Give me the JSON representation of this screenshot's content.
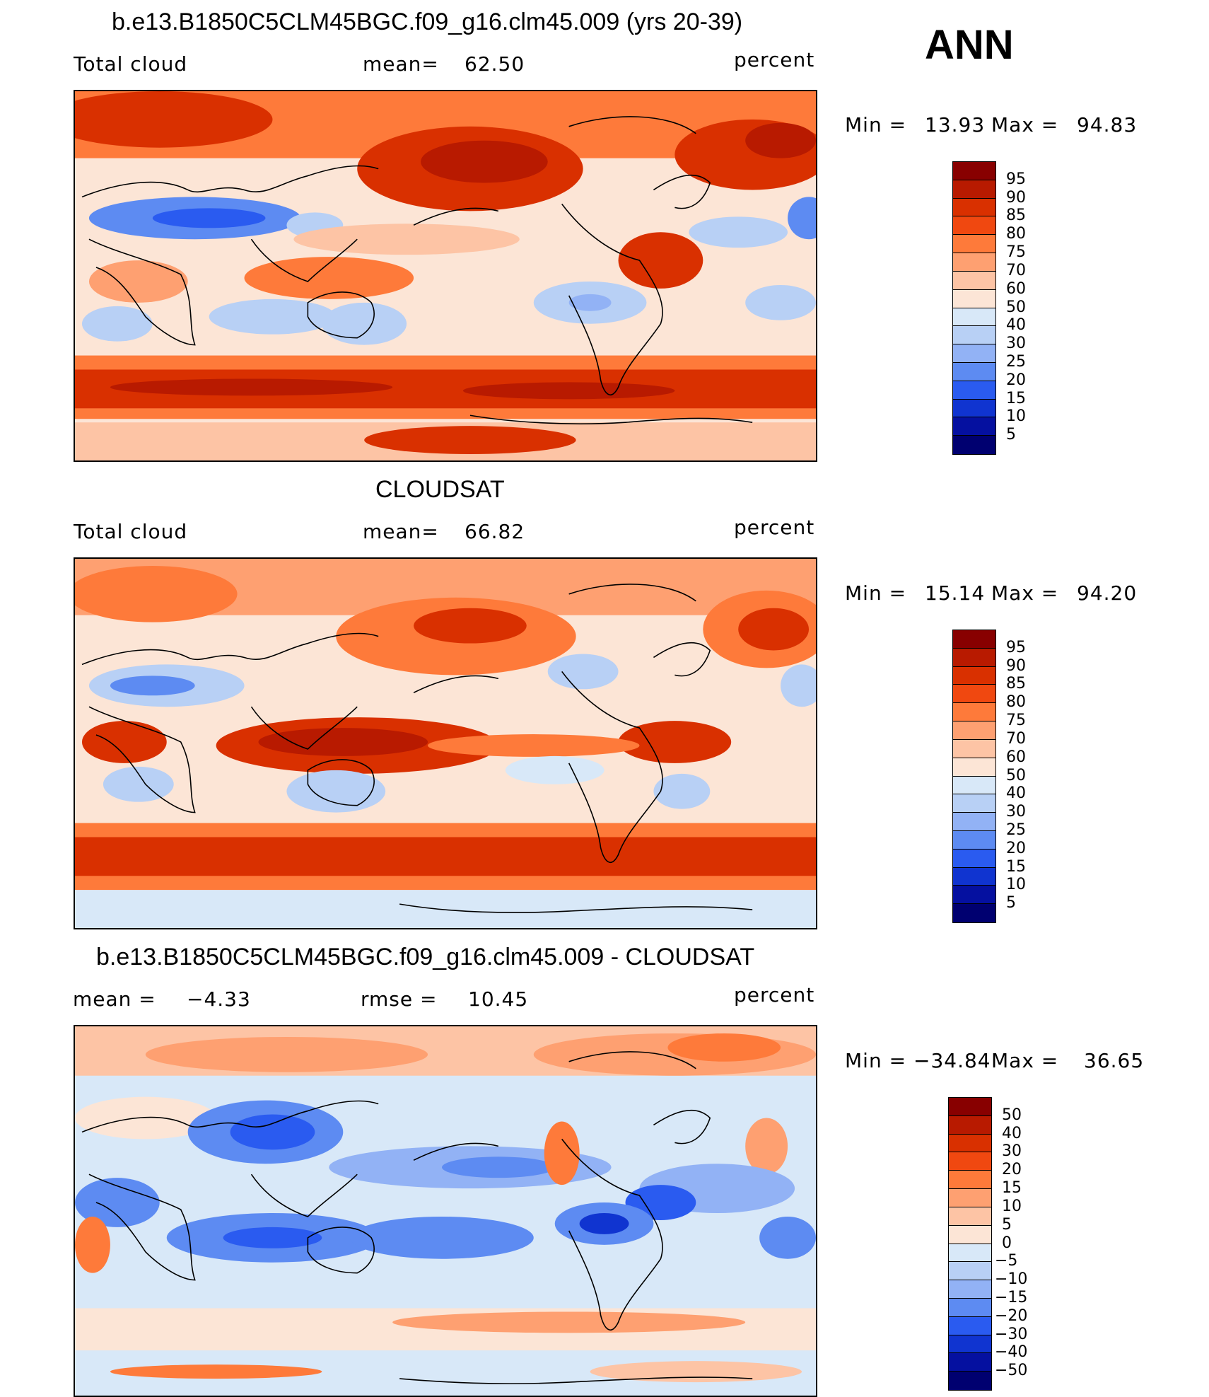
{
  "season": "ANN",
  "panels": [
    {
      "title": "b.e13.B1850C5CLM45BGC.f09_g16.clm45.009 (yrs 20-39)",
      "left_label": "Total cloud",
      "mid_label": "mean=",
      "mid_value": "62.50",
      "units": "percent",
      "min_label": "Min =",
      "min_value": "13.93",
      "max_label": "Max =",
      "max_value": "94.83",
      "colorbar_labels": [
        "95",
        "90",
        "85",
        "80",
        "75",
        "70",
        "60",
        "50",
        "40",
        "30",
        "25",
        "20",
        "15",
        "10",
        "5"
      ],
      "colorbar_colors": [
        "#880000",
        "#b81a00",
        "#d93000",
        "#f04810",
        "#fe7a3a",
        "#fea071",
        "#fdc4a5",
        "#fce5d6",
        "#d8e8f8",
        "#b8d0f5",
        "#92b2f5",
        "#5d8bf2",
        "#2a5bf0",
        "#1034d0",
        "#0510a0",
        "#000070"
      ]
    },
    {
      "title": "CLOUDSAT",
      "left_label": "Total cloud",
      "mid_label": "mean=",
      "mid_value": "66.82",
      "units": "percent",
      "min_label": "Min =",
      "min_value": "15.14",
      "max_label": "Max =",
      "max_value": "94.20",
      "colorbar_labels": [
        "95",
        "90",
        "85",
        "80",
        "75",
        "70",
        "60",
        "50",
        "40",
        "30",
        "25",
        "20",
        "15",
        "10",
        "5"
      ],
      "colorbar_colors": [
        "#880000",
        "#b81a00",
        "#d93000",
        "#f04810",
        "#fe7a3a",
        "#fea071",
        "#fdc4a5",
        "#fce5d6",
        "#d8e8f8",
        "#b8d0f5",
        "#92b2f5",
        "#5d8bf2",
        "#2a5bf0",
        "#1034d0",
        "#0510a0",
        "#000070"
      ]
    },
    {
      "title": "b.e13.B1850C5CLM45BGC.f09_g16.clm45.009 - CLOUDSAT",
      "left_label": "mean =",
      "left_value": "−4.33",
      "mid_label": "rmse =",
      "mid_value": "10.45",
      "units": "percent",
      "min_label": "Min =",
      "min_value": "−34.84",
      "max_label": "Max =",
      "max_value": "36.65",
      "colorbar_labels": [
        "50",
        "40",
        "30",
        "20",
        "15",
        "10",
        "5",
        "0",
        "−5",
        "−10",
        "−15",
        "−20",
        "−30",
        "−40",
        "−50"
      ],
      "colorbar_colors": [
        "#880000",
        "#b81a00",
        "#d93000",
        "#f04810",
        "#fe7a3a",
        "#fea071",
        "#fdc4a5",
        "#fce5d6",
        "#d8e8f8",
        "#b8d0f5",
        "#92b2f5",
        "#5d8bf2",
        "#2a5bf0",
        "#1034d0",
        "#0510a0",
        "#000070"
      ]
    }
  ],
  "field_colors": {
    "deep_red": "#b81a00",
    "red": "#d93000",
    "orange": "#fe7a3a",
    "salmon": "#fdc4a5",
    "cream": "#fce5d6",
    "pale_blue": "#d8e8f8",
    "light_blue": "#b8d0f5",
    "blue": "#5d8bf2",
    "dark_blue": "#2a5bf0",
    "navy": "#1034d0"
  }
}
